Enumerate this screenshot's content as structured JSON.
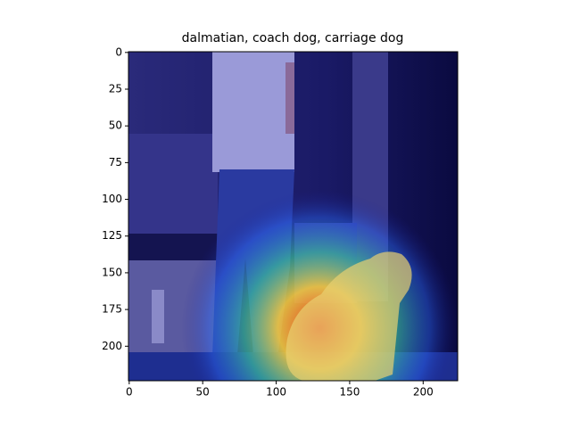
{
  "chart_data": {
    "type": "image",
    "title": "dalmatian, coach dog, carriage dog",
    "xlim": [
      -0.5,
      223.5
    ],
    "ylim": [
      223.5,
      -0.5
    ],
    "xticks": [
      0,
      50,
      100,
      150,
      200
    ],
    "yticks": [
      0,
      25,
      50,
      75,
      100,
      125,
      150,
      175,
      200
    ]
  }
}
